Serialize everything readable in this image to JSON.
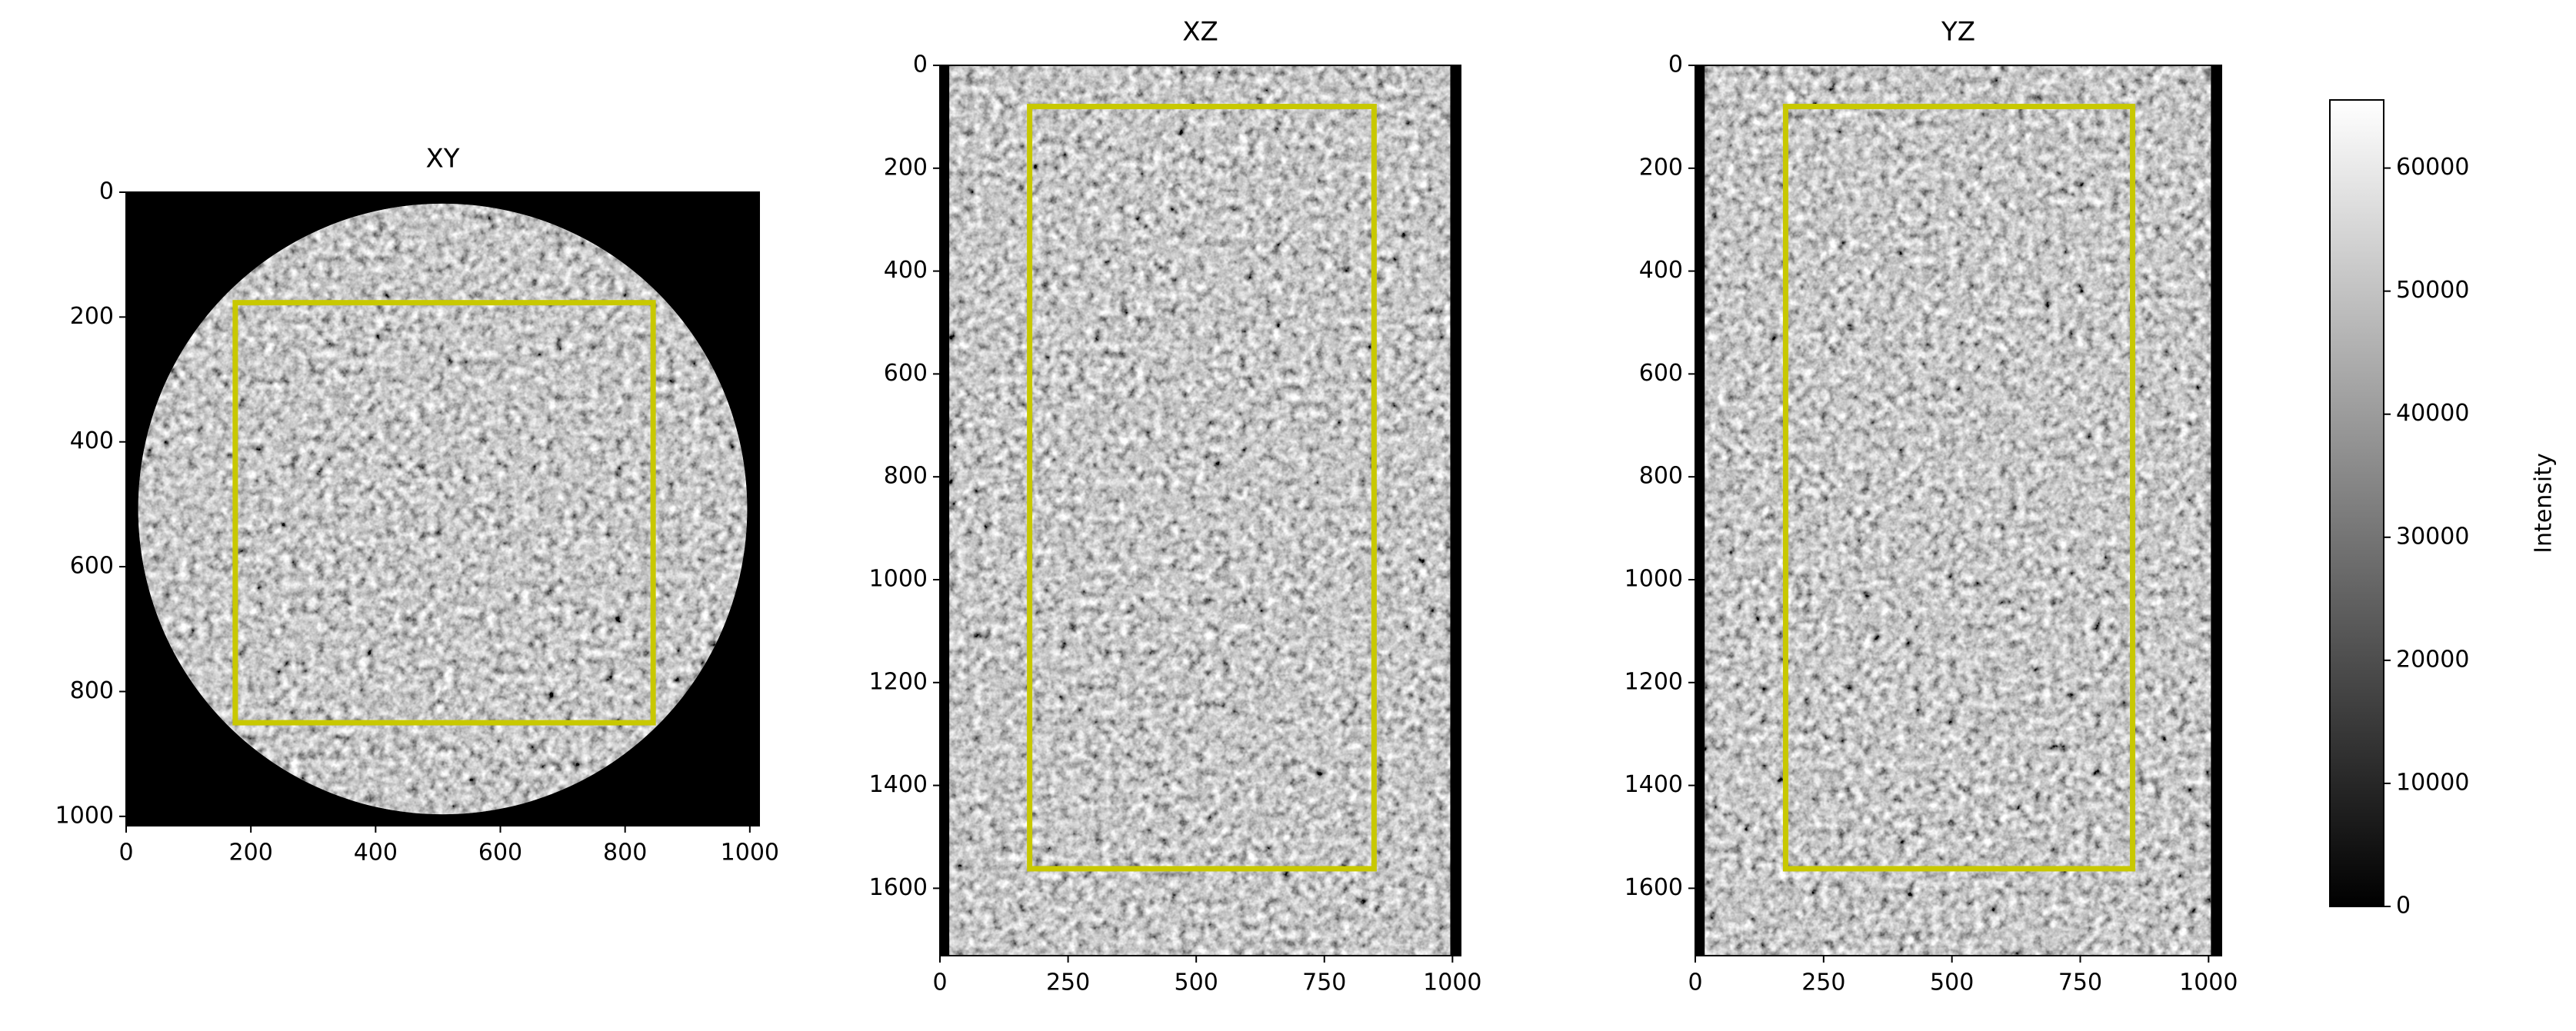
{
  "chart_data": [
    {
      "type": "image",
      "title": "XY",
      "shape": "disc",
      "xlim": [
        0,
        1015
      ],
      "ylim": [
        1015,
        0
      ],
      "xticks": [
        0,
        200,
        400,
        600,
        800,
        1000
      ],
      "yticks": [
        0,
        200,
        400,
        600,
        800,
        1000
      ],
      "roi": {
        "x": [
          175,
          845
        ],
        "y": [
          177,
          850
        ]
      },
      "color": "#c8c800"
    },
    {
      "type": "image",
      "title": "XZ",
      "shape": "column",
      "xlim": [
        0,
        1016
      ],
      "ylim": [
        1731,
        0
      ],
      "xticks": [
        0,
        250,
        500,
        750,
        1000
      ],
      "yticks": [
        0,
        200,
        400,
        600,
        800,
        1000,
        1200,
        1400,
        1600
      ],
      "roi": {
        "x": [
          175,
          847
        ],
        "y": [
          80,
          1562
        ]
      },
      "color": "#c8c800"
    },
    {
      "type": "image",
      "title": "YZ",
      "shape": "column",
      "xlim": [
        0,
        1025
      ],
      "ylim": [
        1731,
        0
      ],
      "xticks": [
        0,
        250,
        500,
        750,
        1000
      ],
      "yticks": [
        0,
        200,
        400,
        600,
        800,
        1000,
        1200,
        1400,
        1600
      ],
      "roi": {
        "x": [
          176,
          852
        ],
        "y": [
          80,
          1562
        ]
      },
      "color": "#c8c800"
    },
    {
      "type": "colorbar",
      "label": "Intensity",
      "ylim": [
        0,
        65535
      ],
      "yticks": [
        0,
        10000,
        20000,
        30000,
        40000,
        50000,
        60000
      ],
      "colormap": [
        "#000000",
        "#ffffff"
      ]
    }
  ]
}
